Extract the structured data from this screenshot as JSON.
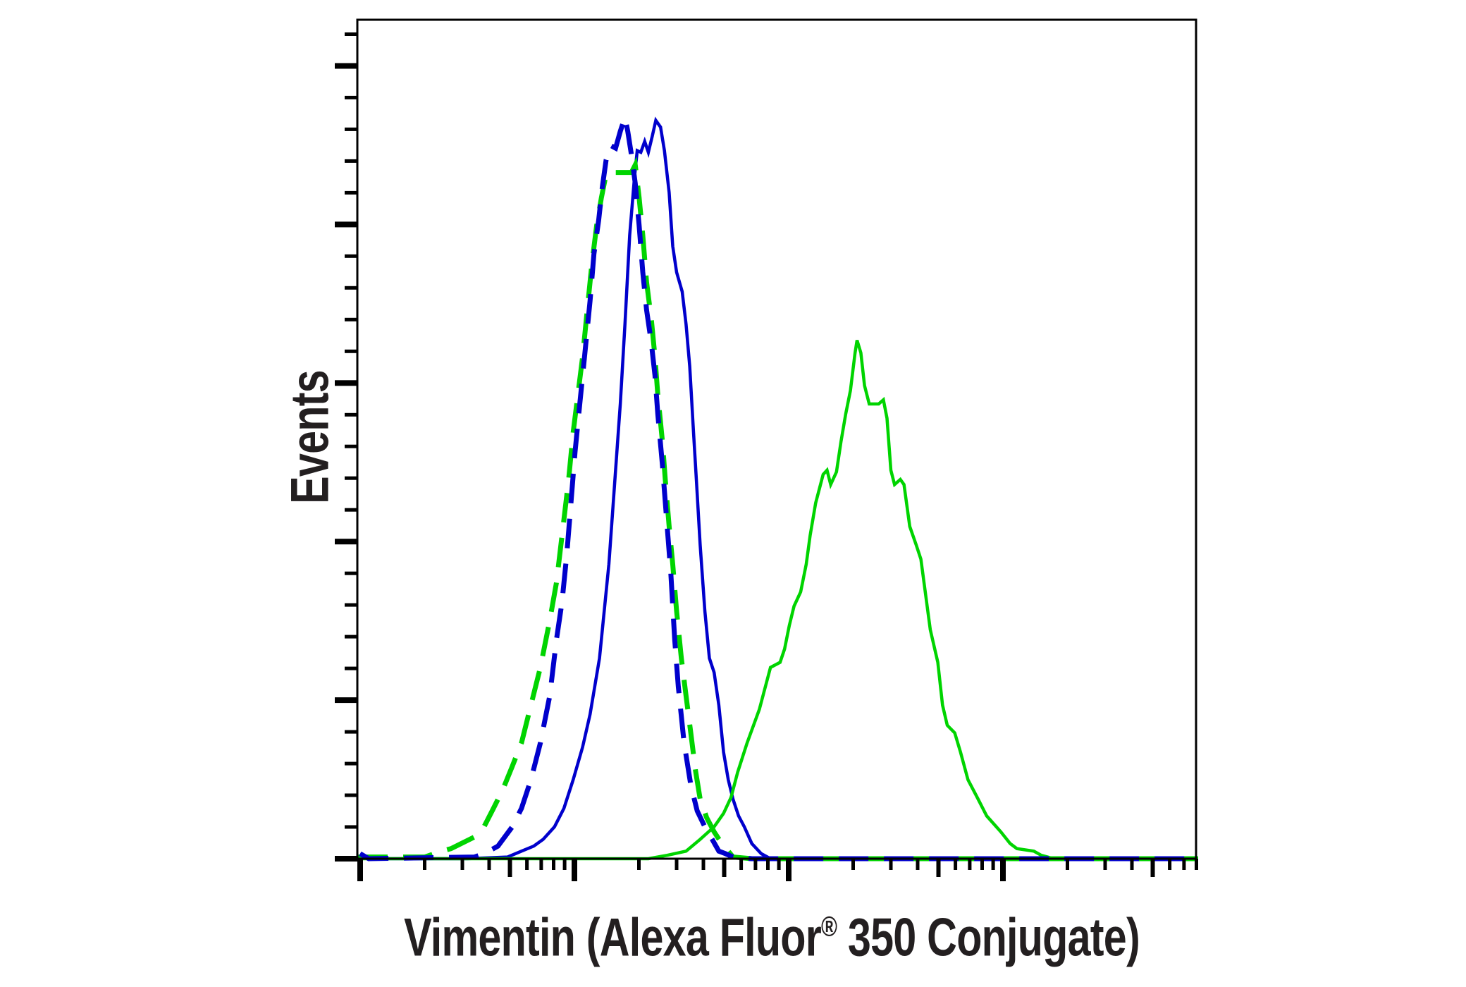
{
  "figure": {
    "ylabel": "Events",
    "xlabel_pre": "Vimentin (Alexa Fluor",
    "xlabel_reg": "®",
    "xlabel_post": " 350 Conjugate)"
  },
  "colors": {
    "blue": "#0000cc",
    "green": "#00d400",
    "axis": "#000000",
    "text": "#231f20"
  },
  "chart_data": {
    "type": "line",
    "title": "",
    "xlabel": "Vimentin (Alexa Fluor® 350 Conjugate)",
    "ylabel": "Events",
    "xscale": "log",
    "x_units": "decades from first major tick",
    "y_units": "percent of y-axis height",
    "xlim": [
      -0.013,
      3.911
    ],
    "ylim": [
      0,
      100
    ],
    "x_major_ticks": [
      0,
      1,
      2,
      3
    ],
    "x_tick_labels": [],
    "y_major_ticks": [
      0,
      18.9,
      37.8,
      56.7,
      75.6,
      94.5
    ],
    "y_minor_per_major": 4,
    "y_tick_labels": [],
    "grid": false,
    "legend": null,
    "series": [
      {
        "name": "solid blue",
        "color": "#0000cc",
        "dash": false,
        "points": [
          [
            0,
            0.6
          ],
          [
            0.03,
            0.2
          ],
          [
            0.05,
            0
          ],
          [
            0.5,
            0
          ],
          [
            0.688,
            0.2
          ],
          [
            0.753,
            0.9
          ],
          [
            0.81,
            1.5
          ],
          [
            0.854,
            2.3
          ],
          [
            0.907,
            3.8
          ],
          [
            0.951,
            6.0
          ],
          [
            0.994,
            9.4
          ],
          [
            1.038,
            13.3
          ],
          [
            1.073,
            17.2
          ],
          [
            1.117,
            23.9
          ],
          [
            1.161,
            35.1
          ],
          [
            1.192,
            46.3
          ],
          [
            1.214,
            54.2
          ],
          [
            1.236,
            63.7
          ],
          [
            1.258,
            74.3
          ],
          [
            1.28,
            81.1
          ],
          [
            1.293,
            84.4
          ],
          [
            1.31,
            84.2
          ],
          [
            1.328,
            85.5
          ],
          [
            1.345,
            84.2
          ],
          [
            1.363,
            86.1
          ],
          [
            1.38,
            88.0
          ],
          [
            1.402,
            87.2
          ],
          [
            1.42,
            84.4
          ],
          [
            1.442,
            79.4
          ],
          [
            1.459,
            73.0
          ],
          [
            1.477,
            69.9
          ],
          [
            1.503,
            67.6
          ],
          [
            1.521,
            63.7
          ],
          [
            1.538,
            58.7
          ],
          [
            1.556,
            50.8
          ],
          [
            1.569,
            45.2
          ],
          [
            1.587,
            37.4
          ],
          [
            1.609,
            29.5
          ],
          [
            1.63,
            23.9
          ],
          [
            1.652,
            22.2
          ],
          [
            1.674,
            18.3
          ],
          [
            1.696,
            12.7
          ],
          [
            1.718,
            9.4
          ],
          [
            1.74,
            7.1
          ],
          [
            1.766,
            5.1
          ],
          [
            1.793,
            3.8
          ],
          [
            1.828,
            1.8
          ],
          [
            1.872,
            0.6
          ],
          [
            1.915,
            0
          ],
          [
            3.911,
            0
          ]
        ]
      },
      {
        "name": "solid green",
        "color": "#00d400",
        "dash": false,
        "points": [
          [
            -0.01,
            0
          ],
          [
            1.345,
            0
          ],
          [
            1.433,
            0.4
          ],
          [
            1.521,
            0.9
          ],
          [
            1.587,
            2.3
          ],
          [
            1.652,
            3.8
          ],
          [
            1.696,
            5.4
          ],
          [
            1.731,
            7.3
          ],
          [
            1.762,
            10.3
          ],
          [
            1.806,
            13.8
          ],
          [
            1.863,
            17.8
          ],
          [
            1.915,
            22.8
          ],
          [
            1.96,
            23.4
          ],
          [
            1.981,
            25.0
          ],
          [
            2.003,
            27.8
          ],
          [
            2.025,
            30.1
          ],
          [
            2.056,
            31.8
          ],
          [
            2.082,
            35.1
          ],
          [
            2.1,
            38.5
          ],
          [
            2.126,
            42.4
          ],
          [
            2.161,
            45.8
          ],
          [
            2.179,
            46.3
          ],
          [
            2.196,
            44.6
          ],
          [
            2.223,
            46.1
          ],
          [
            2.244,
            49.7
          ],
          [
            2.266,
            53.0
          ],
          [
            2.288,
            55.8
          ],
          [
            2.31,
            60.3
          ],
          [
            2.319,
            61.8
          ],
          [
            2.337,
            60.3
          ],
          [
            2.354,
            56.4
          ],
          [
            2.376,
            54.2
          ],
          [
            2.42,
            54.2
          ],
          [
            2.442,
            54.7
          ],
          [
            2.459,
            52.5
          ],
          [
            2.477,
            46.3
          ],
          [
            2.494,
            44.6
          ],
          [
            2.521,
            45.2
          ],
          [
            2.538,
            44.6
          ],
          [
            2.565,
            39.6
          ],
          [
            2.595,
            37.4
          ],
          [
            2.617,
            35.7
          ],
          [
            2.661,
            27.3
          ],
          [
            2.696,
            23.4
          ],
          [
            2.718,
            18.3
          ],
          [
            2.74,
            15.9
          ],
          [
            2.775,
            15.0
          ],
          [
            2.802,
            12.7
          ],
          [
            2.837,
            9.4
          ],
          [
            2.88,
            7.3
          ],
          [
            2.924,
            5.1
          ],
          [
            2.99,
            3.2
          ],
          [
            3.034,
            1.8
          ],
          [
            3.065,
            1.2
          ],
          [
            3.144,
            0.9
          ],
          [
            3.179,
            0.4
          ],
          [
            3.223,
            0.1
          ],
          [
            3.911,
            0
          ]
        ]
      },
      {
        "name": "dashed green",
        "color": "#00d400",
        "dash": true,
        "points": [
          [
            -0.01,
            0.2
          ],
          [
            0.302,
            0.2
          ],
          [
            0.381,
            0.9
          ],
          [
            0.424,
            1.2
          ],
          [
            0.534,
            2.6
          ],
          [
            0.578,
            3.8
          ],
          [
            0.622,
            6.0
          ],
          [
            0.665,
            8.2
          ],
          [
            0.71,
            11.0
          ],
          [
            0.753,
            13.8
          ],
          [
            0.797,
            18.3
          ],
          [
            0.841,
            22.8
          ],
          [
            0.885,
            28.4
          ],
          [
            0.916,
            32.9
          ],
          [
            0.942,
            38.5
          ],
          [
            0.973,
            45.2
          ],
          [
            0.994,
            50.8
          ],
          [
            1.016,
            55.3
          ],
          [
            1.038,
            59.8
          ],
          [
            1.06,
            65.4
          ],
          [
            1.082,
            71.0
          ],
          [
            1.104,
            75.5
          ],
          [
            1.126,
            78.8
          ],
          [
            1.148,
            81.6
          ],
          [
            1.17,
            81.8
          ],
          [
            1.266,
            81.8
          ],
          [
            1.284,
            82.7
          ],
          [
            1.302,
            78.8
          ],
          [
            1.319,
            74.3
          ],
          [
            1.337,
            68.7
          ],
          [
            1.359,
            64.3
          ],
          [
            1.376,
            59.8
          ],
          [
            1.389,
            55.3
          ],
          [
            1.411,
            49.7
          ],
          [
            1.424,
            45.2
          ],
          [
            1.442,
            39.6
          ],
          [
            1.459,
            35.1
          ],
          [
            1.477,
            29.5
          ],
          [
            1.499,
            23.9
          ],
          [
            1.521,
            19.4
          ],
          [
            1.543,
            15.0
          ],
          [
            1.565,
            10.5
          ],
          [
            1.587,
            7.1
          ],
          [
            1.617,
            4.9
          ],
          [
            1.652,
            3.2
          ],
          [
            1.688,
            1.8
          ],
          [
            1.718,
            0.9
          ],
          [
            1.74,
            0.2
          ],
          [
            1.828,
            0
          ],
          [
            3.911,
            0
          ]
        ]
      },
      {
        "name": "dashed blue",
        "color": "#0000cc",
        "dash": true,
        "points": [
          [
            0,
            0.6
          ],
          [
            0.04,
            0
          ],
          [
            0.534,
            0.2
          ],
          [
            0.578,
            0.6
          ],
          [
            0.622,
            1.2
          ],
          [
            0.643,
            1.5
          ],
          [
            0.71,
            3.8
          ],
          [
            0.753,
            6.0
          ],
          [
            0.797,
            9.4
          ],
          [
            0.841,
            13.8
          ],
          [
            0.885,
            19.4
          ],
          [
            0.916,
            26.1
          ],
          [
            0.942,
            30.6
          ],
          [
            0.964,
            36.2
          ],
          [
            0.982,
            41.8
          ],
          [
            1.003,
            48.5
          ],
          [
            1.025,
            54.2
          ],
          [
            1.047,
            59.8
          ],
          [
            1.073,
            66.5
          ],
          [
            1.091,
            72.1
          ],
          [
            1.113,
            76.1
          ],
          [
            1.13,
            80.0
          ],
          [
            1.148,
            83.3
          ],
          [
            1.17,
            85.0
          ],
          [
            1.192,
            84.7
          ],
          [
            1.214,
            86.7
          ],
          [
            1.236,
            88.4
          ],
          [
            1.249,
            86.7
          ],
          [
            1.266,
            83.9
          ],
          [
            1.284,
            80.5
          ],
          [
            1.302,
            75.5
          ],
          [
            1.319,
            69.9
          ],
          [
            1.337,
            65.4
          ],
          [
            1.359,
            61.5
          ],
          [
            1.376,
            57.6
          ],
          [
            1.389,
            53.0
          ],
          [
            1.411,
            46.9
          ],
          [
            1.433,
            39.6
          ],
          [
            1.45,
            34.0
          ],
          [
            1.468,
            26.1
          ],
          [
            1.485,
            20.5
          ],
          [
            1.512,
            13.8
          ],
          [
            1.543,
            8.8
          ],
          [
            1.573,
            5.7
          ],
          [
            1.609,
            3.8
          ],
          [
            1.643,
            2.3
          ],
          [
            1.674,
            0.9
          ],
          [
            1.705,
            0.6
          ],
          [
            1.74,
            0.2
          ],
          [
            1.828,
            0
          ],
          [
            3.911,
            0
          ]
        ]
      }
    ]
  }
}
